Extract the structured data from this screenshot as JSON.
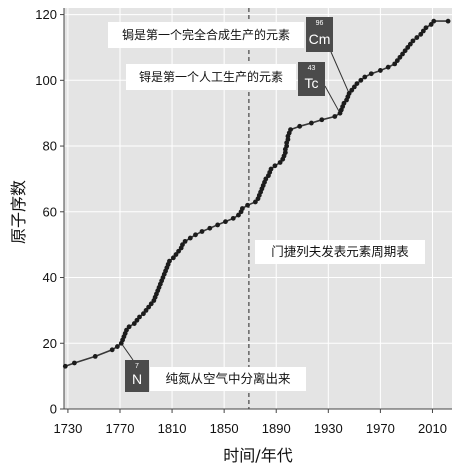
{
  "chart_data": {
    "type": "line",
    "xlabel": "时间/年代",
    "ylabel": "原子序数",
    "xlim": [
      1727,
      2025
    ],
    "ylim": [
      0,
      122
    ],
    "xticks": [
      1730,
      1770,
      1810,
      1850,
      1890,
      1930,
      1970,
      2010
    ],
    "yticks": [
      0,
      20,
      40,
      60,
      80,
      100,
      120
    ],
    "grid": true,
    "markers": true,
    "series": [
      {
        "points": [
          [
            1728,
            13
          ],
          [
            1735,
            14
          ],
          [
            1751,
            16
          ],
          [
            1764,
            18
          ],
          [
            1768,
            19
          ],
          [
            1771,
            20
          ],
          [
            1772,
            21
          ],
          [
            1773,
            22
          ],
          [
            1774,
            23
          ],
          [
            1775,
            24
          ],
          [
            1777,
            25
          ],
          [
            1781,
            26
          ],
          [
            1783,
            27
          ],
          [
            1785,
            28
          ],
          [
            1788,
            29
          ],
          [
            1790,
            30
          ],
          [
            1792,
            31
          ],
          [
            1794,
            32
          ],
          [
            1796,
            33
          ],
          [
            1797,
            34
          ],
          [
            1798,
            35
          ],
          [
            1799,
            36
          ],
          [
            1800,
            37
          ],
          [
            1801,
            38
          ],
          [
            1802,
            39
          ],
          [
            1803,
            40
          ],
          [
            1804,
            41
          ],
          [
            1805,
            42
          ],
          [
            1806,
            43
          ],
          [
            1807,
            44
          ],
          [
            1808,
            45
          ],
          [
            1811,
            46
          ],
          [
            1813,
            47
          ],
          [
            1815,
            48
          ],
          [
            1817,
            49
          ],
          [
            1818,
            50
          ],
          [
            1820,
            51
          ],
          [
            1824,
            52
          ],
          [
            1828,
            53
          ],
          [
            1833,
            54
          ],
          [
            1839,
            55
          ],
          [
            1845,
            56
          ],
          [
            1851,
            57
          ],
          [
            1857,
            58
          ],
          [
            1861,
            59
          ],
          [
            1863,
            60
          ],
          [
            1864,
            61
          ],
          [
            1868,
            62
          ],
          [
            1874,
            63
          ],
          [
            1876,
            64
          ],
          [
            1877,
            65
          ],
          [
            1878,
            66
          ],
          [
            1879,
            67
          ],
          [
            1880,
            68
          ],
          [
            1881,
            69
          ],
          [
            1882,
            70
          ],
          [
            1884,
            71
          ],
          [
            1885,
            72
          ],
          [
            1886,
            73
          ],
          [
            1889,
            74
          ],
          [
            1893,
            75
          ],
          [
            1895,
            76
          ],
          [
            1896,
            77
          ],
          [
            1897,
            78
          ],
          [
            1897,
            79
          ],
          [
            1898,
            80
          ],
          [
            1898,
            81
          ],
          [
            1899,
            82
          ],
          [
            1899,
            83
          ],
          [
            1900,
            84
          ],
          [
            1901,
            85
          ],
          [
            1908,
            86
          ],
          [
            1917,
            87
          ],
          [
            1925,
            88
          ],
          [
            1935,
            89
          ],
          [
            1939,
            90
          ],
          [
            1940,
            91
          ],
          [
            1941,
            92
          ],
          [
            1942,
            93
          ],
          [
            1944,
            94
          ],
          [
            1945,
            95
          ],
          [
            1946,
            96
          ],
          [
            1948,
            97
          ],
          [
            1950,
            98
          ],
          [
            1952,
            99
          ],
          [
            1955,
            100
          ],
          [
            1958,
            101
          ],
          [
            1963,
            102
          ],
          [
            1970,
            103
          ],
          [
            1976,
            104
          ],
          [
            1981,
            105
          ],
          [
            1983,
            106
          ],
          [
            1985,
            107
          ],
          [
            1987,
            108
          ],
          [
            1989,
            109
          ],
          [
            1991,
            110
          ],
          [
            1993,
            111
          ],
          [
            1995,
            112
          ],
          [
            1998,
            113
          ],
          [
            2001,
            114
          ],
          [
            2003,
            115
          ],
          [
            2005,
            116
          ],
          [
            2009,
            117
          ],
          [
            2011,
            118
          ],
          [
            2022,
            118
          ]
        ]
      }
    ],
    "vlines": [
      {
        "x": 1869,
        "dashed": true
      }
    ],
    "annotations": [
      {
        "text": "锔是第一个完全合成生产的元素",
        "element": {
          "number": "96",
          "symbol": "Cm"
        },
        "points_to": [
          1946,
          96
        ]
      },
      {
        "text": "锝是第一个人工生产的元素",
        "element": {
          "number": "43",
          "symbol": "Tc"
        },
        "points_to": [
          1939,
          90
        ]
      },
      {
        "text": "门捷列夫发表元素周期表"
      },
      {
        "text": "纯氮从空气中分离出来",
        "element": {
          "number": "7",
          "symbol": "N"
        },
        "points_to": [
          1771,
          20
        ]
      }
    ]
  },
  "colors": {
    "plot_bg": "#e4e4e4",
    "grid": "#ffffff",
    "axis": "#444444",
    "line": "#383838",
    "marker": "#1c1c1c",
    "reference_line": "#444444",
    "leader": "#333333",
    "tile": "#4b4b4b"
  }
}
